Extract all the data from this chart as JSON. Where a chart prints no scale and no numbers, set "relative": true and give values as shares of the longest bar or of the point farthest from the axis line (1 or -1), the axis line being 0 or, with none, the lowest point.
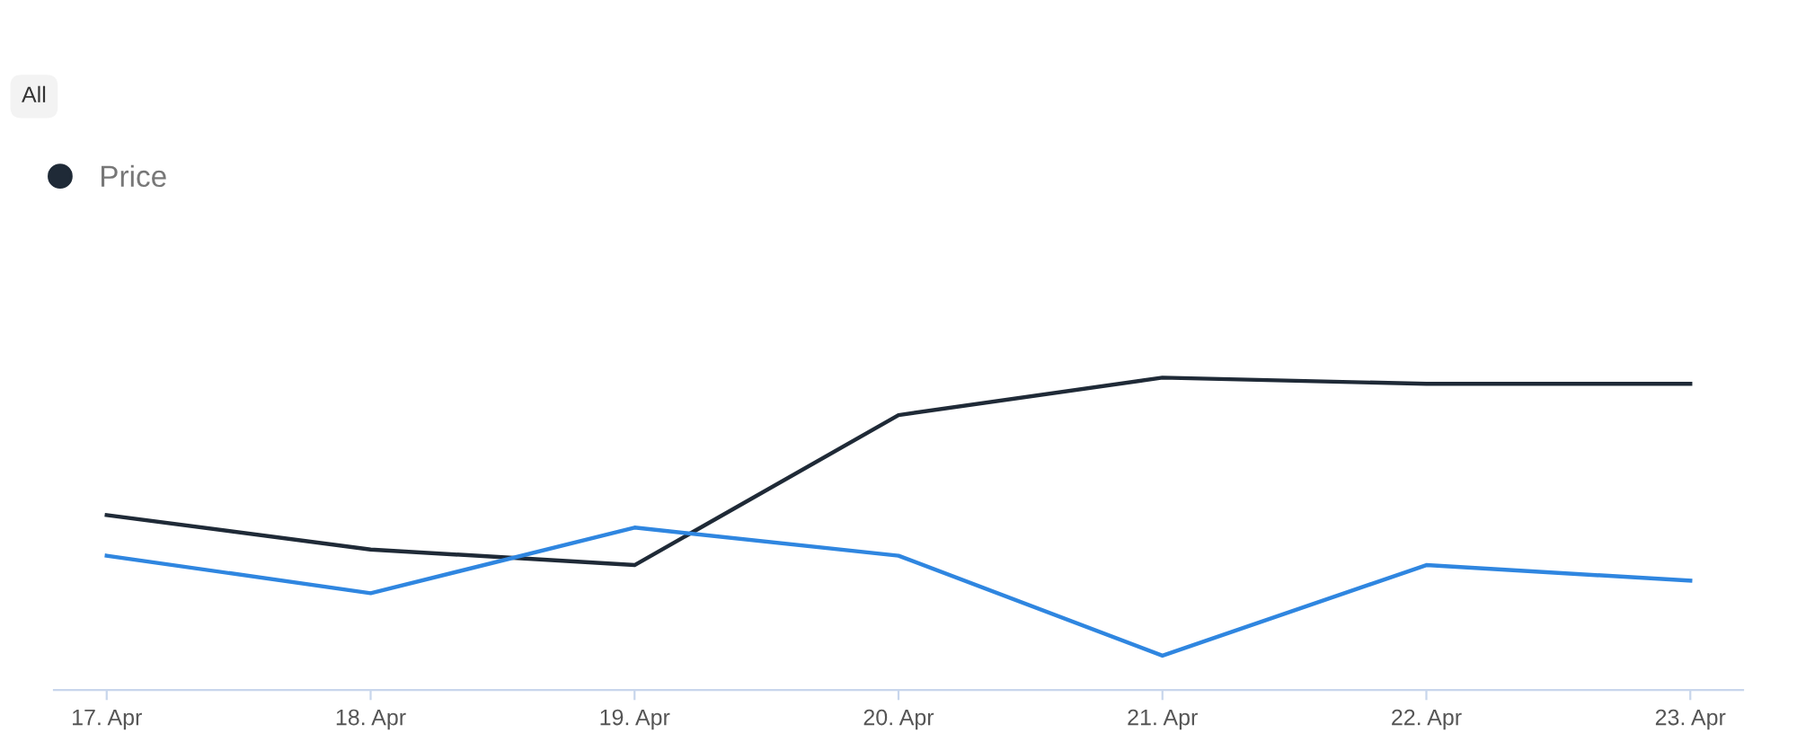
{
  "chart_data": {
    "type": "line",
    "relative": true,
    "categories": [
      "17. Apr",
      "18. Apr",
      "19. Apr",
      "20. Apr",
      "21. Apr",
      "22. Apr",
      "23. Apr"
    ],
    "series": [
      {
        "name": "Price",
        "color": "#1f2a37",
        "values": [
          0.56,
          0.45,
          0.4,
          0.88,
          1,
          0.98,
          0.98
        ]
      },
      {
        "color": "#2f86e0",
        "values": [
          0.43,
          0.31,
          0.52,
          0.43,
          0.11,
          0.4,
          0.35
        ]
      }
    ],
    "annotations": [
      "All"
    ],
    "legend": "top left",
    "marker": "none",
    "line_style": "solid"
  }
}
